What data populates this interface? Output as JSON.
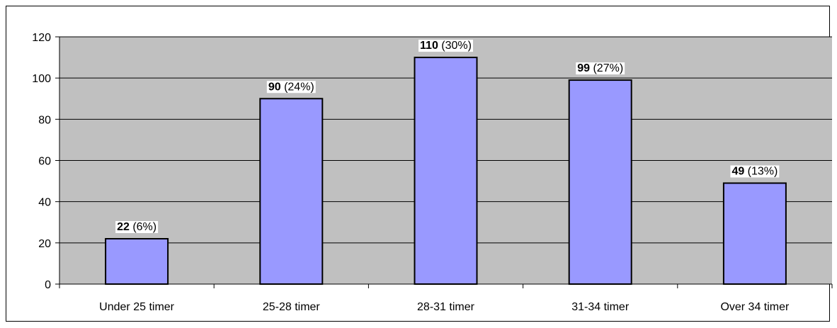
{
  "chart_data": {
    "type": "bar",
    "categories": [
      "Under 25 timer",
      "25-28 timer",
      "28-31 timer",
      "31-34 timer",
      "Over 34 timer"
    ],
    "values": [
      22,
      90,
      110,
      99,
      49
    ],
    "percent_labels": [
      "(6%)",
      "(24%)",
      "(30%)",
      "(27%)",
      "(13%)"
    ],
    "yticks": [
      0,
      20,
      40,
      60,
      80,
      100,
      120
    ],
    "ylim": [
      0,
      120
    ],
    "grid": true,
    "legend": "none",
    "title": "",
    "xlabel": "",
    "ylabel": ""
  },
  "colors": {
    "plot_background": "#c0c0c0",
    "bar_fill": "#9999ff",
    "bar_stroke": "#000000",
    "gridline": "#000000",
    "label_background": "#ffffff"
  }
}
